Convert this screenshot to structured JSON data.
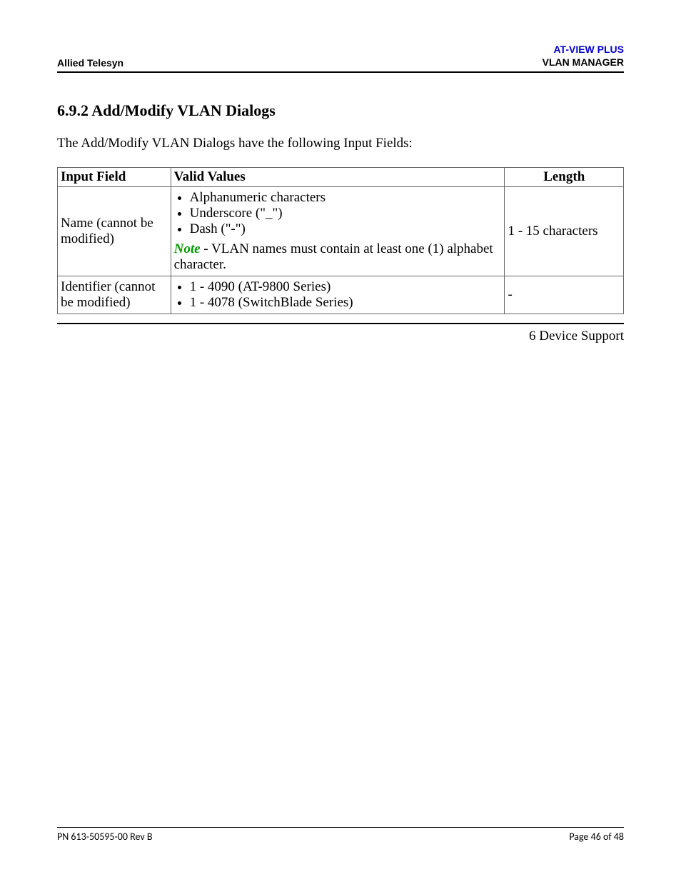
{
  "header": {
    "left": "Allied Telesyn",
    "right_line1": "AT-VIEW PLUS",
    "right_line2": "VLAN MANAGER"
  },
  "section": {
    "heading": "6.9.2 Add/Modify VLAN Dialogs",
    "intro": "The Add/Modify VLAN Dialogs have the following Input Fields:"
  },
  "table": {
    "columns": {
      "input_field": "Input Field",
      "valid_values": "Valid Values",
      "length": "Length"
    },
    "column_widths": [
      "20%",
      "59%",
      "21%"
    ],
    "border_color": "#666666",
    "rows": [
      {
        "input_field": "Name (cannot be modified)",
        "valid_values": {
          "items": [
            "Alphanumeric characters",
            "Underscore (\"_\")",
            "Dash (\"-\")"
          ],
          "note_label": "Note",
          "note_text": " - VLAN names must contain at least one (1) alphabet character."
        },
        "length": "1 - 15 characters"
      },
      {
        "input_field": "Identifier (cannot be modified)",
        "valid_values": {
          "items": [
            "1 - 4090 (AT-9800 Series)",
            "1 - 4078 (SwitchBlade Series)"
          ]
        },
        "length": "-"
      }
    ]
  },
  "section_footer": "6 Device Support",
  "footer": {
    "left": "PN 613-50595-00 Rev B",
    "right": "Page 46 of 48"
  },
  "colors": {
    "header_link": "#0000d0",
    "note_green": "#009900",
    "text": "#000000",
    "background": "#ffffff"
  },
  "fonts": {
    "body": "Times New Roman",
    "header_footer": "Arial",
    "body_size_pt": 14,
    "heading_size_pt": 16,
    "header_size_pt": 10
  }
}
